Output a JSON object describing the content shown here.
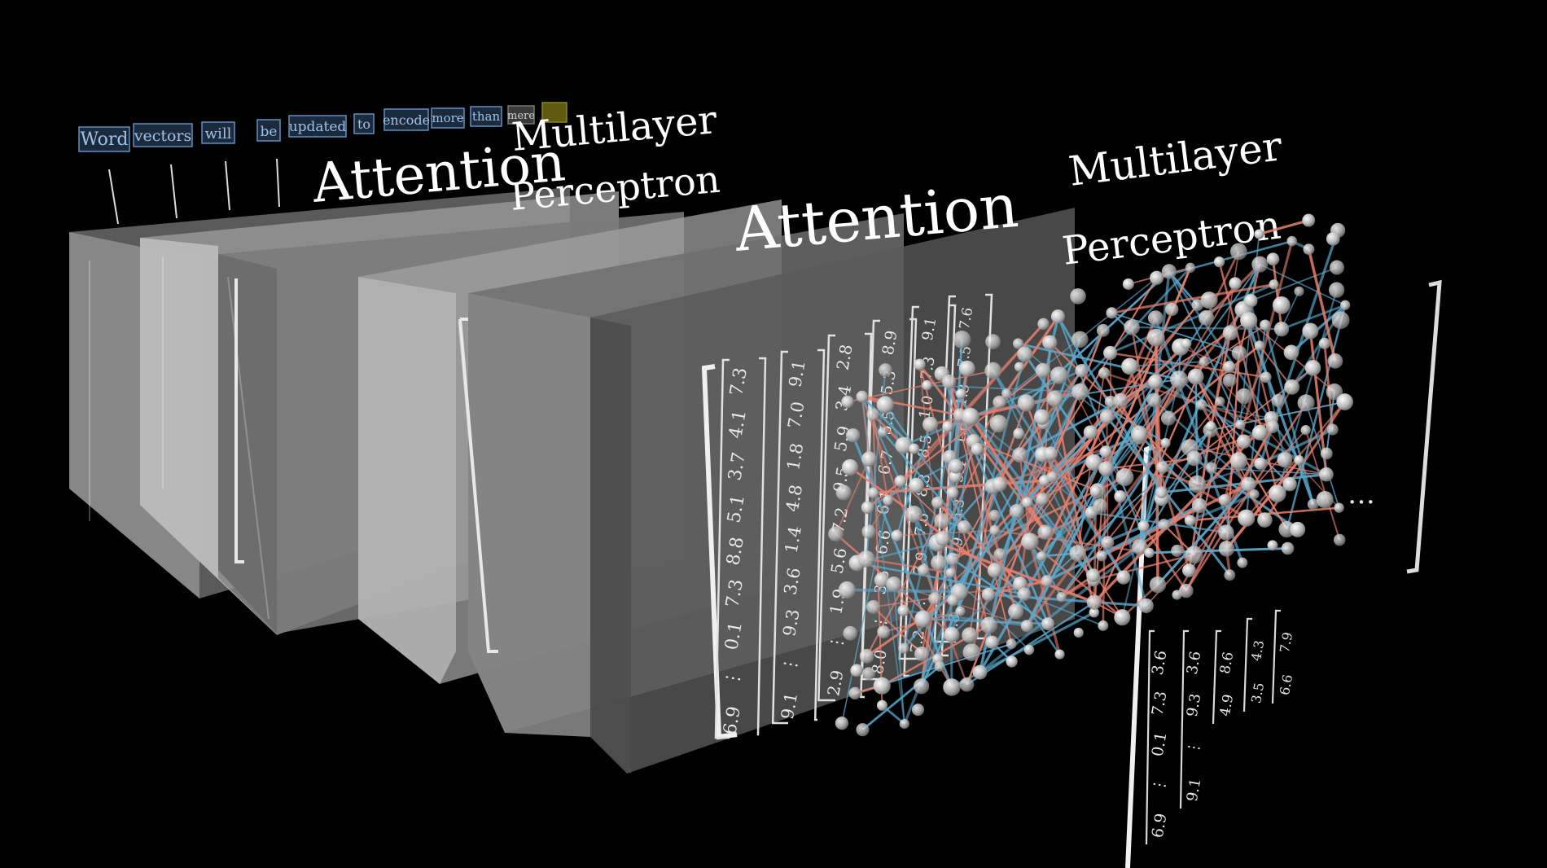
{
  "tokens": [
    "Word",
    "vectors",
    "will",
    "be",
    "updated",
    "to",
    "encode",
    "more",
    "than",
    "mere"
  ],
  "labels": {
    "attention_1": "Attention",
    "mlp_1_line1": "Multilayer",
    "mlp_1_line2": "Perceptron",
    "attention_2": "Attention",
    "mlp_2_line1": "Multilayer",
    "mlp_2_line2": "Perceptron"
  },
  "vectors": [
    {
      "values": [
        "7.3",
        "4.1",
        "3.7",
        "5.1",
        "8.8",
        "7.3",
        "0.1",
        "⋮",
        "6.9"
      ]
    },
    {
      "values": [
        "9.1",
        "7.0",
        "1.8",
        "4.8",
        "1.4",
        "3.6",
        "9.3",
        "⋮",
        "9.1"
      ]
    },
    {
      "values": [
        "2.8",
        "3.4",
        "5.9",
        "9.5",
        "7.2",
        "5.6",
        "1.9",
        "⋮",
        "2.9"
      ]
    },
    {
      "values": [
        "8.9",
        "5.3",
        "5.5",
        "6.7",
        "6.1",
        "6.6",
        "3.5",
        "⋮",
        "8.0"
      ]
    },
    {
      "values": [
        "9.1",
        "7.3",
        "1.0",
        "8.5",
        "8.3",
        "7.6",
        "7.9",
        "⋮",
        "7.2"
      ]
    },
    {
      "values": [
        "7.6",
        "7.5",
        "1.3",
        "1.6",
        "5.4",
        "5.3",
        "1.9",
        "⋮",
        "9.8"
      ]
    }
  ],
  "right_vectors": [
    {
      "values": [
        "3.6",
        "7.3",
        "0.1",
        "⋮",
        "6.9"
      ]
    },
    {
      "values": [
        "3.6",
        "9.3",
        "⋮",
        "9.1"
      ]
    },
    {
      "values": [
        "8.6",
        "4.9"
      ]
    },
    {
      "values": [
        "4.3",
        "3.5"
      ]
    },
    {
      "values": [
        "7.9",
        "6.6"
      ]
    }
  ],
  "ellipsis": "…",
  "colors": {
    "background": "#000000",
    "edge_red": "#e7806f",
    "edge_blue": "#5aa9cc",
    "token_box": "#1c2a3d",
    "token_text": "#9fc2e6",
    "highlight": "#5e5a10"
  }
}
